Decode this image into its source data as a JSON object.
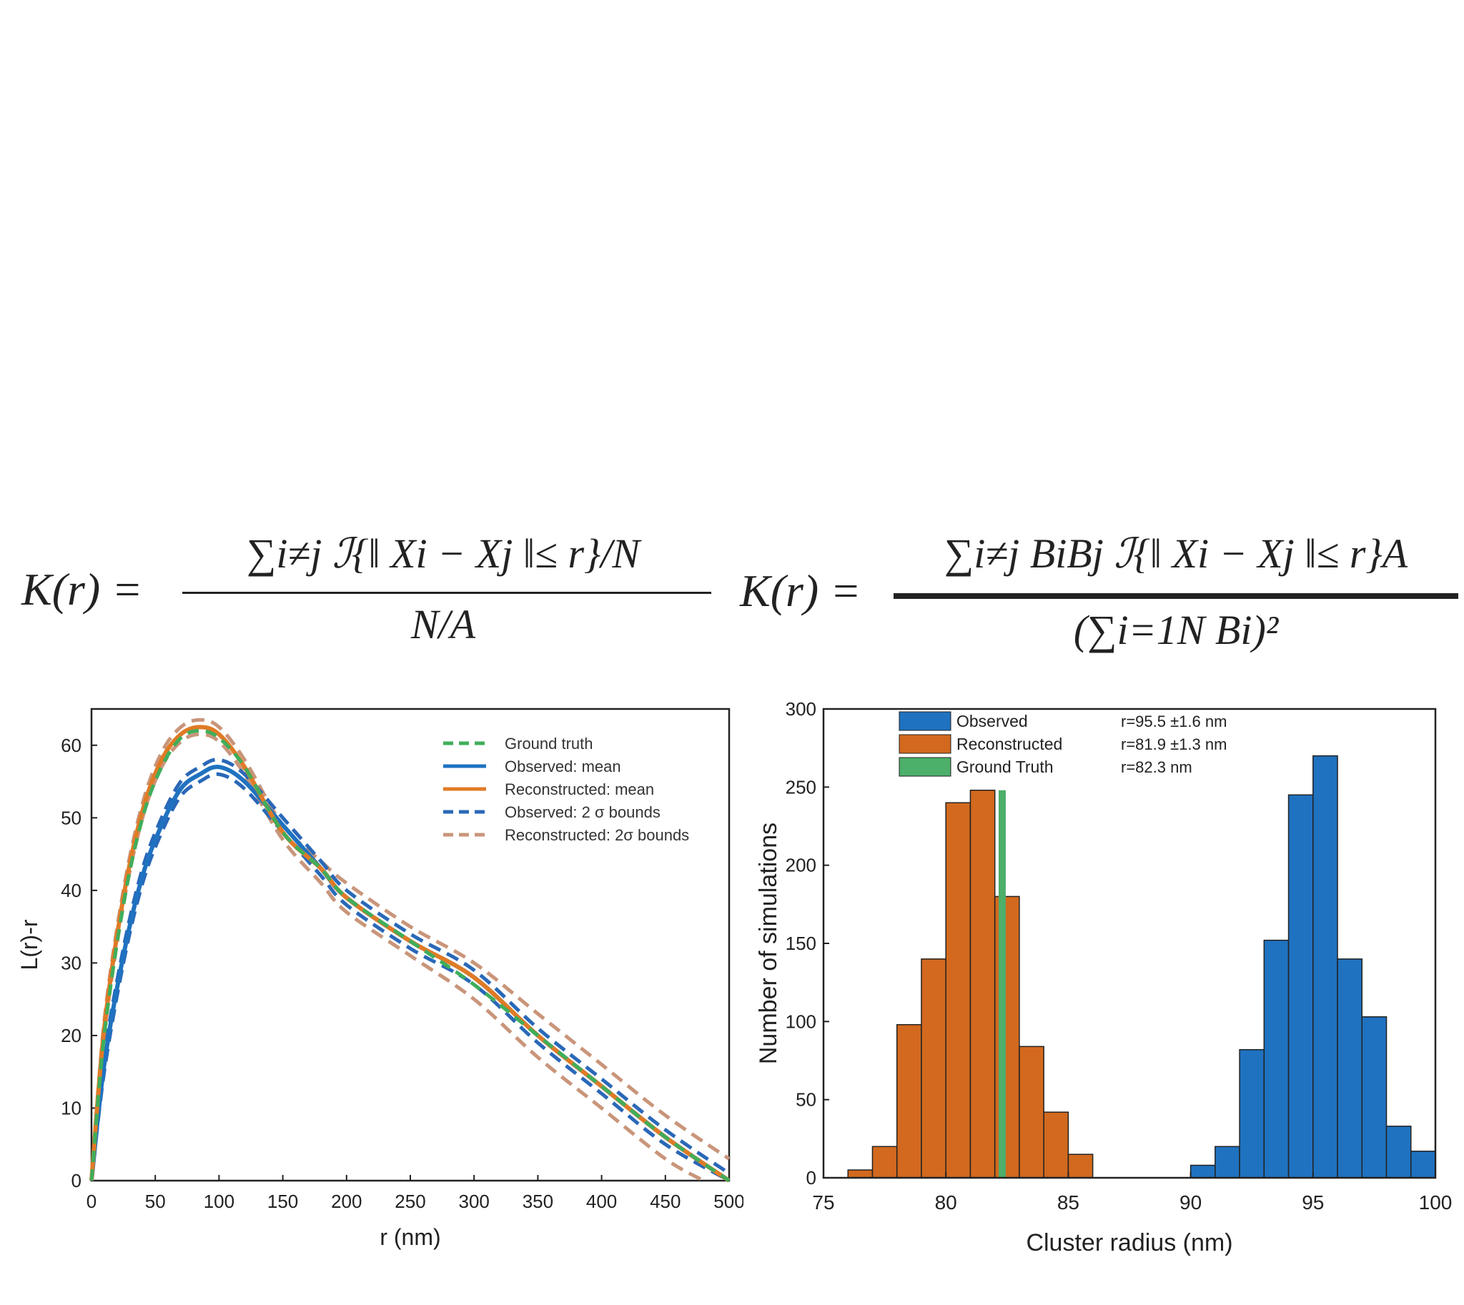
{
  "formulas": {
    "left": {
      "lhs": "K(r) =",
      "numerator": "∑i≠j ℐ{‖ Xi − Xj ‖≤ r}/N",
      "denominator": "N/A"
    },
    "right": {
      "lhs": "K(r) =",
      "numerator": "∑i≠j BiBj ℐ{‖ Xi − Xj ‖≤ r}A",
      "denominator": "(∑i=1N Bi)²"
    }
  },
  "chart_data": [
    {
      "type": "line",
      "title": "",
      "xlabel": "r (nm)",
      "ylabel": "L(r)-r",
      "xlim": [
        0,
        500
      ],
      "ylim": [
        0,
        65
      ],
      "xticks": [
        0,
        50,
        100,
        150,
        200,
        250,
        300,
        350,
        400,
        450,
        500
      ],
      "yticks": [
        0,
        10,
        20,
        30,
        40,
        50,
        60
      ],
      "grid": false,
      "legend_position": "top-right",
      "legend": [
        "Ground truth",
        "Observed: mean",
        "Reconstructed: mean",
        "Observed: 2 σ bounds",
        "Reconstructed: 2σ bounds"
      ],
      "colors": {
        "ground_truth": "#3fae5a",
        "observed": "#1f72c0",
        "reconstructed": "#e07b26",
        "observed_bounds": "#2a68b8",
        "reconstructed_bounds": "#c9957a"
      },
      "series": [
        {
          "name": "Ground truth",
          "style": "dashed",
          "x": [
            0,
            10,
            25,
            40,
            55,
            70,
            85,
            100,
            120,
            150,
            180,
            200,
            250,
            300,
            350,
            400,
            450,
            500
          ],
          "y": [
            0,
            20,
            38,
            50,
            57,
            61,
            62,
            61,
            57,
            48,
            43,
            39,
            33,
            27,
            20,
            13,
            6,
            0
          ]
        },
        {
          "name": "Observed: mean",
          "style": "solid",
          "x": [
            0,
            10,
            25,
            40,
            55,
            70,
            85,
            100,
            120,
            150,
            180,
            200,
            250,
            300,
            350,
            400,
            450,
            500
          ],
          "y": [
            0,
            16,
            31,
            42,
            49,
            54,
            56,
            57,
            55,
            49,
            43,
            39,
            33,
            28,
            20,
            13,
            6,
            0
          ]
        },
        {
          "name": "Reconstructed: mean",
          "style": "solid",
          "x": [
            0,
            10,
            25,
            40,
            55,
            70,
            85,
            100,
            120,
            150,
            180,
            200,
            250,
            300,
            350,
            400,
            450,
            500
          ],
          "y": [
            0,
            21,
            39,
            51,
            58,
            61.5,
            62.5,
            61.5,
            57,
            48,
            43,
            39,
            33,
            28,
            20,
            13,
            6,
            0
          ]
        },
        {
          "name": "Observed: 2 σ bounds (upper)",
          "style": "dashed",
          "x": [
            0,
            10,
            25,
            40,
            55,
            70,
            85,
            100,
            120,
            150,
            180,
            200,
            250,
            300,
            350,
            400,
            450,
            500
          ],
          "y": [
            0,
            17,
            32,
            43,
            50,
            55,
            57,
            58,
            56,
            50,
            44,
            40,
            34,
            29,
            21,
            14,
            7,
            1
          ]
        },
        {
          "name": "Observed: 2 σ bounds (lower)",
          "style": "dashed",
          "x": [
            0,
            10,
            25,
            40,
            55,
            70,
            85,
            100,
            120,
            150,
            180,
            200,
            250,
            300,
            350,
            400,
            450,
            500
          ],
          "y": [
            0,
            15,
            30,
            41,
            48,
            53,
            55,
            56,
            54,
            48,
            42,
            38,
            32,
            27,
            19,
            12,
            5,
            0
          ]
        },
        {
          "name": "Reconstructed: 2σ bounds (upper)",
          "style": "dashed",
          "x": [
            0,
            10,
            25,
            40,
            55,
            70,
            85,
            100,
            120,
            150,
            180,
            200,
            250,
            300,
            350,
            400,
            450,
            500
          ],
          "y": [
            0,
            22,
            40,
            52,
            59,
            62.5,
            63.5,
            62.5,
            58,
            49,
            44,
            41,
            35,
            30,
            23,
            16,
            9,
            3
          ]
        },
        {
          "name": "Reconstructed: 2σ bounds (lower)",
          "style": "dashed",
          "x": [
            0,
            10,
            25,
            40,
            55,
            70,
            85,
            100,
            120,
            150,
            180,
            200,
            250,
            300,
            350,
            400,
            450,
            480
          ],
          "y": [
            0,
            20,
            38,
            50,
            57,
            60.5,
            61.5,
            60.5,
            56,
            47,
            41,
            37,
            31,
            25,
            17,
            10,
            3,
            0
          ]
        }
      ]
    },
    {
      "type": "bar",
      "title": "",
      "xlabel": "Cluster radius (nm)",
      "ylabel": "Number of simulations",
      "xlim": [
        75,
        100
      ],
      "ylim": [
        0,
        300
      ],
      "xticks": [
        75,
        80,
        85,
        90,
        95,
        100
      ],
      "yticks": [
        0,
        50,
        100,
        150,
        200,
        250,
        300
      ],
      "grid": false,
      "legend_position": "top-left",
      "bin_width": 1,
      "series": [
        {
          "name": "Observed",
          "color": "#1f72c0",
          "stat": "r=95.5 ±1.6 nm",
          "bin_starts": [
            90,
            91,
            92,
            93,
            94,
            95,
            96,
            97,
            98,
            99
          ],
          "values": [
            8,
            20,
            82,
            152,
            245,
            270,
            140,
            103,
            33,
            17
          ]
        },
        {
          "name": "Reconstructed",
          "color": "#d2691e",
          "stat": "r=81.9 ±1.3 nm",
          "bin_starts": [
            76,
            77,
            78,
            79,
            80,
            81,
            82,
            83,
            84,
            85,
            86
          ],
          "values": [
            5,
            20,
            98,
            140,
            240,
            248,
            180,
            84,
            42,
            15,
            0
          ]
        },
        {
          "name": "Ground Truth",
          "color": "#4caf6a",
          "stat": "r=82.3 nm",
          "x": 82.3,
          "value": 248
        }
      ]
    }
  ]
}
